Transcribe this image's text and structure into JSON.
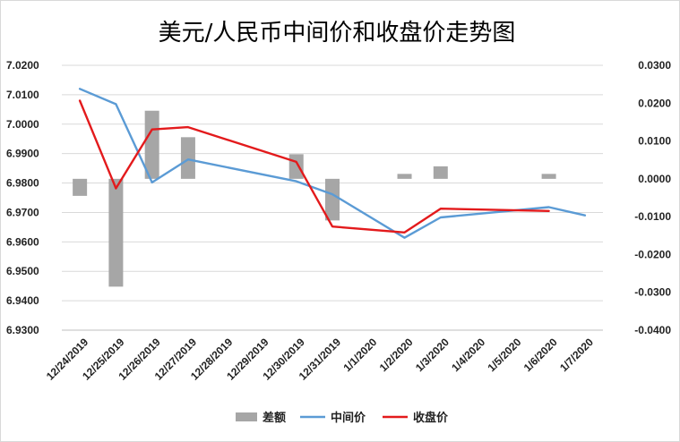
{
  "chart_data": {
    "type": "bar+line",
    "title": "美元/人民币中间价和收盘价走势图",
    "categories": [
      "12/24/2019",
      "12/25/2019",
      "12/26/2019",
      "12/27/2019",
      "12/28/2019",
      "12/29/2019",
      "12/30/2019",
      "12/31/2019",
      "1/1/2020",
      "1/2/2020",
      "1/3/2020",
      "1/4/2020",
      "1/5/2020",
      "1/6/2020",
      "1/7/2020"
    ],
    "y_left": {
      "min": 6.93,
      "max": 7.02,
      "step": 0.01,
      "ticks": [
        "6.9300",
        "6.9400",
        "6.9500",
        "6.9600",
        "6.9700",
        "6.9800",
        "6.9900",
        "7.0000",
        "7.0100",
        "7.0200"
      ]
    },
    "y_right": {
      "min": -0.04,
      "max": 0.03,
      "step": 0.01,
      "ticks": [
        "-0.0400",
        "-0.0300",
        "-0.0200",
        "-0.0100",
        "0.0000",
        "0.0100",
        "0.0200",
        "0.0300"
      ]
    },
    "series": [
      {
        "name": "差额",
        "kind": "bar",
        "axis": "right",
        "color": "#a6a6a6",
        "values": [
          -0.0045,
          -0.0285,
          0.018,
          0.011,
          null,
          null,
          0.0065,
          -0.011,
          null,
          0.0013,
          0.0033,
          null,
          null,
          0.0013,
          null
        ]
      },
      {
        "name": "中间价",
        "kind": "line",
        "axis": "left",
        "color": "#5b9bd5",
        "values": [
          7.012,
          7.0068,
          6.9802,
          6.988,
          null,
          null,
          6.9806,
          6.9762,
          null,
          6.9614,
          6.9683,
          null,
          null,
          6.9718,
          6.969
        ]
      },
      {
        "name": "收盘价",
        "kind": "line",
        "axis": "left",
        "color": "#e31a1c",
        "values": [
          7.008,
          6.9782,
          6.9982,
          6.999,
          null,
          null,
          6.9872,
          6.9652,
          null,
          6.9632,
          6.9713,
          null,
          null,
          6.9705,
          null
        ]
      }
    ],
    "grid": "horizontal",
    "legend_position": "bottom"
  }
}
